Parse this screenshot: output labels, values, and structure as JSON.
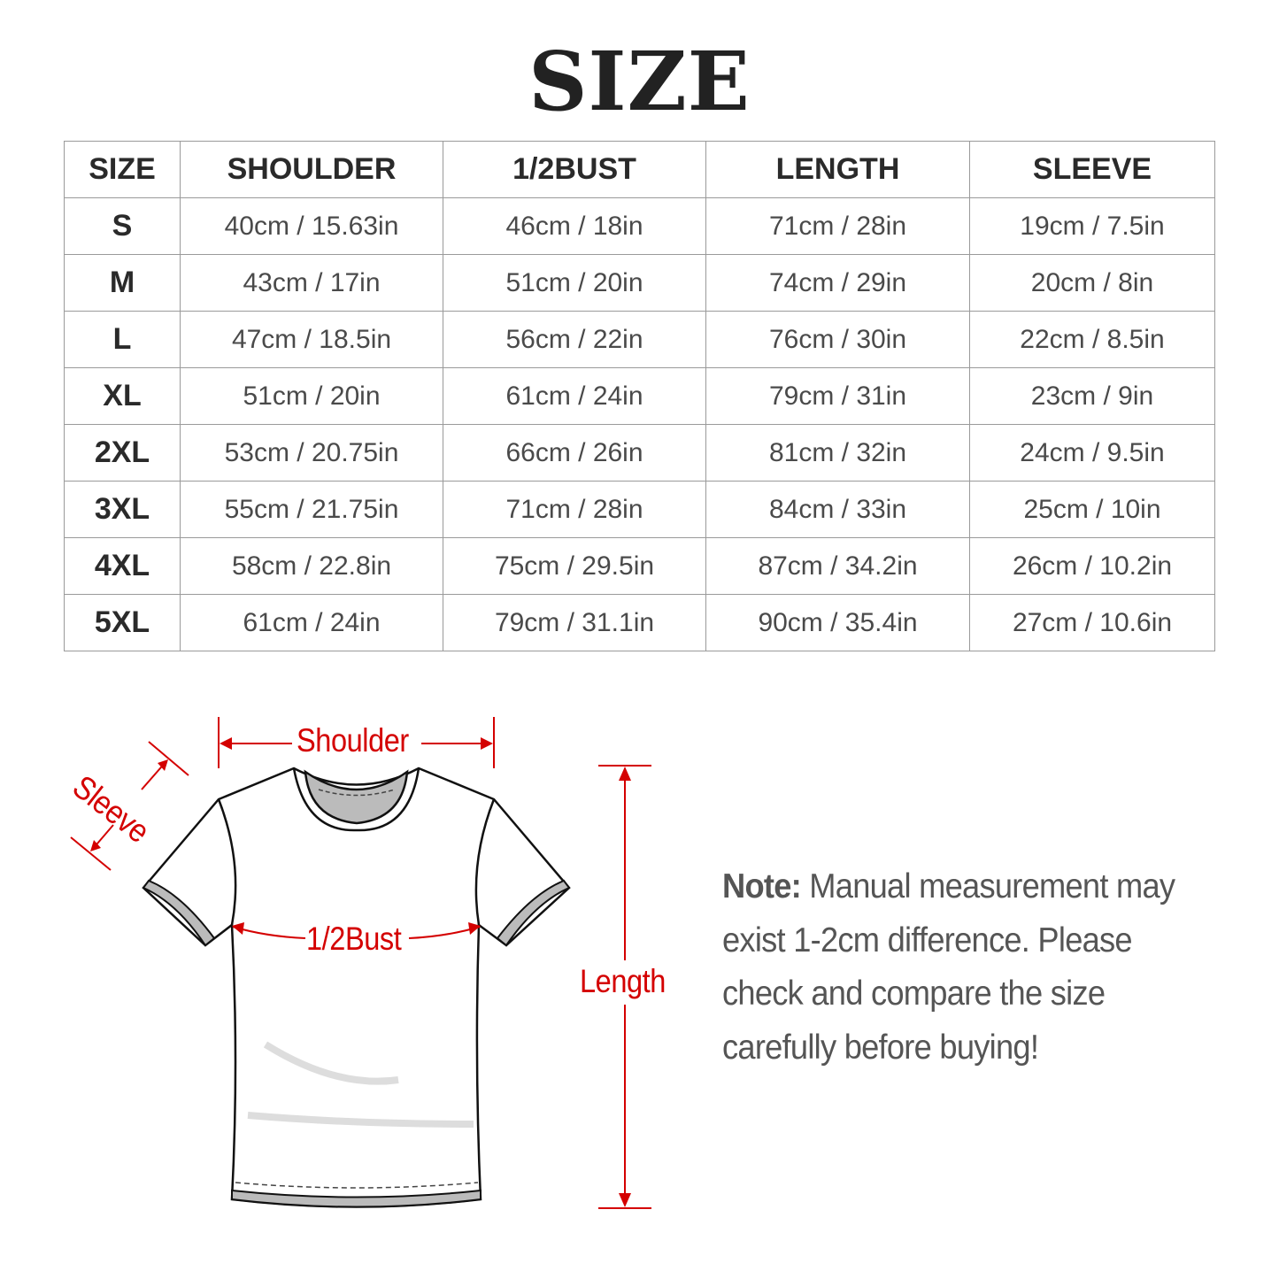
{
  "title": "SIZE",
  "table": {
    "headers": [
      "SIZE",
      "SHOULDER",
      "1/2BUST",
      "LENGTH",
      "SLEEVE"
    ],
    "rows": [
      [
        "S",
        "40cm / 15.63in",
        "46cm / 18in",
        "71cm / 28in",
        "19cm / 7.5in"
      ],
      [
        "M",
        "43cm / 17in",
        "51cm / 20in",
        "74cm / 29in",
        "20cm / 8in"
      ],
      [
        "L",
        "47cm / 18.5in",
        "56cm / 22in",
        "76cm / 30in",
        "22cm / 8.5in"
      ],
      [
        "XL",
        "51cm / 20in",
        "61cm / 24in",
        "79cm / 31in",
        "23cm / 9in"
      ],
      [
        "2XL",
        "53cm / 20.75in",
        "66cm / 26in",
        "81cm / 32in",
        "24cm / 9.5in"
      ],
      [
        "3XL",
        "55cm / 21.75in",
        "71cm / 28in",
        "84cm / 33in",
        "25cm / 10in"
      ],
      [
        "4XL",
        "58cm / 22.8in",
        "75cm / 29.5in",
        "87cm / 34.2in",
        "26cm / 10.2in"
      ],
      [
        "5XL",
        "61cm / 24in",
        "79cm / 31.1in",
        "90cm / 35.4in",
        "27cm / 10.6in"
      ]
    ]
  },
  "diagram": {
    "shoulder_label": "Shoulder",
    "sleeve_label": "Sleeve",
    "bust_label": "1/2Bust",
    "length_label": "Length",
    "accent_color": "#d40000"
  },
  "note": {
    "label": "Note:",
    "lines": [
      "Manual measurement may",
      "exist 1-2cm difference. Please",
      "check and compare the size",
      "carefully before buying!"
    ]
  }
}
